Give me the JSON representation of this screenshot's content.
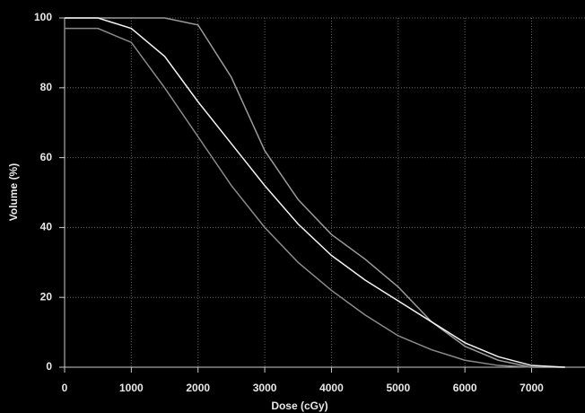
{
  "chart_data": {
    "type": "line",
    "xlabel": "Dose (cGy)",
    "ylabel": "Volume (%)",
    "x": [
      0,
      500,
      1000,
      1500,
      2000,
      2500,
      3000,
      3500,
      4000,
      4500,
      5000,
      5500,
      6000,
      6500,
      7000,
      7500
    ],
    "series": [
      {
        "color": "#9a9a9a",
        "values": [
          100,
          100,
          100,
          100,
          98,
          83,
          62,
          48,
          38,
          31,
          23,
          13,
          6,
          2,
          0,
          0
        ]
      },
      {
        "color": "#8a8a8a",
        "values": [
          97,
          97,
          93,
          80,
          66,
          52,
          40,
          30,
          22,
          15,
          9,
          5,
          2,
          0.5,
          0,
          0
        ]
      },
      {
        "color": "#f2f2f2",
        "values": [
          100,
          100,
          97,
          89,
          76,
          64,
          52,
          41,
          32,
          25,
          19,
          13,
          7,
          3,
          0.5,
          0
        ]
      }
    ],
    "xlim": [
      0,
      7800
    ],
    "ylim": [
      0,
      100
    ],
    "xticks": [
      0,
      1000,
      2000,
      3000,
      4000,
      5000,
      6000,
      7000
    ],
    "yticks": [
      0,
      20,
      40,
      60,
      80,
      100
    ],
    "grid": true
  }
}
